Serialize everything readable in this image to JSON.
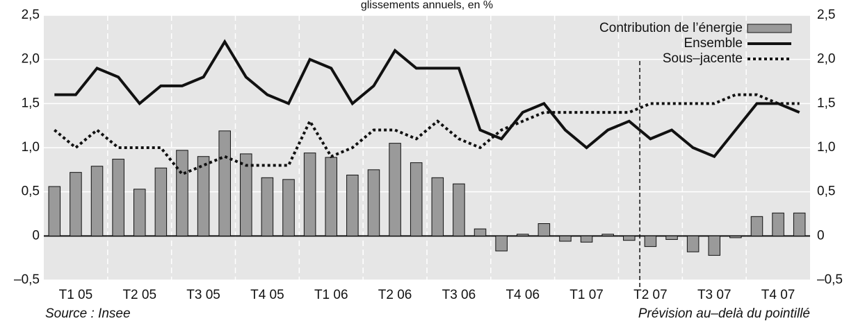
{
  "chart_data": {
    "type": "combo",
    "title": "glissements annuels, en %",
    "categories": [
      null,
      "T1 05",
      null,
      null,
      "T2 05",
      null,
      null,
      "T3 05",
      null,
      null,
      "T4 05",
      null,
      null,
      "T1 06",
      null,
      null,
      "T2 06",
      null,
      null,
      "T3 06",
      null,
      null,
      "T4 06",
      null,
      null,
      "T1 07",
      null,
      null,
      "T2 07",
      null,
      null,
      "T3 07",
      null,
      null,
      "T4 07",
      null
    ],
    "series": [
      {
        "name": "Contribution de l’énergie",
        "kind": "bar",
        "color": "#9a9a9a",
        "values": [
          0.56,
          0.72,
          0.79,
          0.87,
          0.53,
          0.77,
          0.97,
          0.9,
          1.19,
          0.93,
          0.66,
          0.64,
          0.94,
          0.89,
          0.69,
          0.75,
          1.05,
          0.83,
          0.66,
          0.59,
          0.08,
          -0.17,
          0.02,
          0.14,
          -0.06,
          -0.07,
          0.02,
          -0.05,
          -0.12,
          -0.04,
          -0.18,
          -0.22,
          -0.02,
          0.22,
          0.26,
          0.26
        ]
      },
      {
        "name": "Ensemble",
        "kind": "line",
        "dotted": false,
        "color": "#111111",
        "values": [
          1.6,
          1.6,
          1.9,
          1.8,
          1.5,
          1.7,
          1.7,
          1.8,
          2.2,
          1.8,
          1.6,
          1.5,
          2.0,
          1.9,
          1.5,
          1.7,
          2.1,
          1.9,
          1.9,
          1.9,
          1.2,
          1.1,
          1.4,
          1.5,
          1.2,
          1.0,
          1.2,
          1.3,
          1.1,
          1.2,
          1.0,
          0.9,
          1.2,
          1.5,
          1.5,
          1.4
        ]
      },
      {
        "name": "Sous–jacente",
        "kind": "line",
        "dotted": true,
        "color": "#111111",
        "values": [
          1.2,
          1.0,
          1.2,
          1.0,
          1.0,
          1.0,
          0.7,
          0.8,
          0.9,
          0.8,
          0.8,
          0.8,
          1.3,
          0.9,
          1.0,
          1.2,
          1.2,
          1.1,
          1.3,
          1.1,
          1.0,
          1.2,
          1.3,
          1.4,
          1.4,
          1.4,
          1.4,
          1.4,
          1.5,
          1.5,
          1.5,
          1.5,
          1.6,
          1.6,
          1.5,
          1.5
        ]
      }
    ],
    "ylim": [
      -0.5,
      2.5
    ],
    "yticks": [
      {
        "value": -0.5,
        "label": "–0,5"
      },
      0,
      {
        "value": 0.5,
        "label": "0,5"
      },
      {
        "value": 1,
        "label": "1,0"
      },
      {
        "value": 1.5,
        "label": "1,5"
      },
      {
        "value": 2,
        "label": "2,0"
      },
      {
        "value": 2.5,
        "label": "2,5"
      }
    ],
    "y2lim": [
      -0.5,
      2.5
    ],
    "y2ticks": [
      {
        "value": -0.5,
        "label": "–0,5"
      },
      0,
      {
        "value": 0.5,
        "label": "0,5"
      },
      {
        "value": 1,
        "label": "1,0"
      },
      {
        "value": 1.5,
        "label": "1,5"
      },
      {
        "value": 2,
        "label": "2,0"
      },
      {
        "value": 2.5,
        "label": "2,5"
      }
    ],
    "grid": true,
    "legend": "top-right",
    "source": "Source : Insee",
    "note": "Prévision au–delà du pointillé"
  }
}
